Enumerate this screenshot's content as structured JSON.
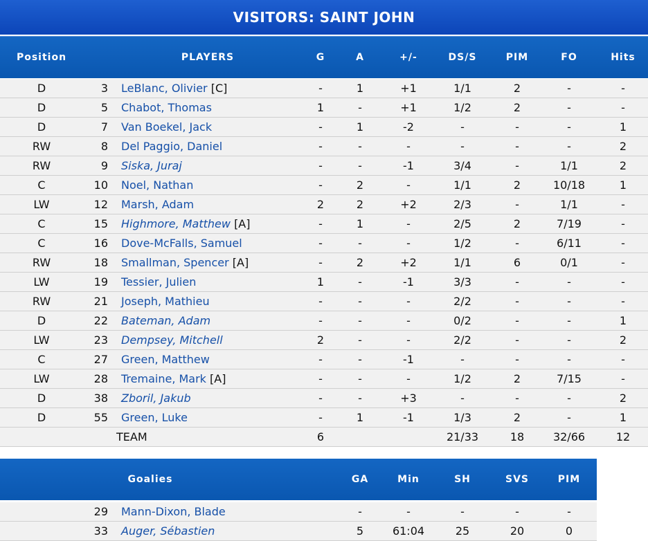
{
  "title": "VISITORS: SAINT JOHN",
  "headers": {
    "position": "Position",
    "players": "PLAYERS",
    "g": "G",
    "a": "A",
    "pm": "+/-",
    "dss": "DS/S",
    "pim": "PIM",
    "fo": "FO",
    "hits": "Hits"
  },
  "players": [
    {
      "pos": "D",
      "num": "3",
      "name": "LeBlanc, Olivier",
      "tag": "[C]",
      "italic": false,
      "g": "-",
      "a": "1",
      "pm": "+1",
      "dss": "1/1",
      "pim": "2",
      "fo": "-",
      "hits": "-"
    },
    {
      "pos": "D",
      "num": "5",
      "name": "Chabot, Thomas",
      "tag": "",
      "italic": false,
      "g": "1",
      "a": "-",
      "pm": "+1",
      "dss": "1/2",
      "pim": "2",
      "fo": "-",
      "hits": "-"
    },
    {
      "pos": "D",
      "num": "7",
      "name": "Van Boekel, Jack",
      "tag": "",
      "italic": false,
      "g": "-",
      "a": "1",
      "pm": "-2",
      "dss": "-",
      "pim": "-",
      "fo": "-",
      "hits": "1"
    },
    {
      "pos": "RW",
      "num": "8",
      "name": "Del Paggio, Daniel",
      "tag": "",
      "italic": false,
      "g": "-",
      "a": "-",
      "pm": "-",
      "dss": "-",
      "pim": "-",
      "fo": "-",
      "hits": "2"
    },
    {
      "pos": "RW",
      "num": "9",
      "name": "Siska, Juraj",
      "tag": "",
      "italic": true,
      "g": "-",
      "a": "-",
      "pm": "-1",
      "dss": "3/4",
      "pim": "-",
      "fo": "1/1",
      "hits": "2"
    },
    {
      "pos": "C",
      "num": "10",
      "name": "Noel, Nathan",
      "tag": "",
      "italic": false,
      "g": "-",
      "a": "2",
      "pm": "-",
      "dss": "1/1",
      "pim": "2",
      "fo": "10/18",
      "hits": "1"
    },
    {
      "pos": "LW",
      "num": "12",
      "name": "Marsh, Adam",
      "tag": "",
      "italic": false,
      "g": "2",
      "a": "2",
      "pm": "+2",
      "dss": "2/3",
      "pim": "-",
      "fo": "1/1",
      "hits": "-"
    },
    {
      "pos": "C",
      "num": "15",
      "name": "Highmore, Matthew",
      "tag": "[A]",
      "italic": true,
      "g": "-",
      "a": "1",
      "pm": "-",
      "dss": "2/5",
      "pim": "2",
      "fo": "7/19",
      "hits": "-"
    },
    {
      "pos": "C",
      "num": "16",
      "name": "Dove-McFalls, Samuel",
      "tag": "",
      "italic": false,
      "g": "-",
      "a": "-",
      "pm": "-",
      "dss": "1/2",
      "pim": "-",
      "fo": "6/11",
      "hits": "-"
    },
    {
      "pos": "RW",
      "num": "18",
      "name": "Smallman, Spencer",
      "tag": "[A]",
      "italic": false,
      "g": "-",
      "a": "2",
      "pm": "+2",
      "dss": "1/1",
      "pim": "6",
      "fo": "0/1",
      "hits": "-"
    },
    {
      "pos": "LW",
      "num": "19",
      "name": "Tessier, Julien",
      "tag": "",
      "italic": false,
      "g": "1",
      "a": "-",
      "pm": "-1",
      "dss": "3/3",
      "pim": "-",
      "fo": "-",
      "hits": "-"
    },
    {
      "pos": "RW",
      "num": "21",
      "name": "Joseph, Mathieu",
      "tag": "",
      "italic": false,
      "g": "-",
      "a": "-",
      "pm": "-",
      "dss": "2/2",
      "pim": "-",
      "fo": "-",
      "hits": "-"
    },
    {
      "pos": "D",
      "num": "22",
      "name": "Bateman, Adam",
      "tag": "",
      "italic": true,
      "g": "-",
      "a": "-",
      "pm": "-",
      "dss": "0/2",
      "pim": "-",
      "fo": "-",
      "hits": "1"
    },
    {
      "pos": "LW",
      "num": "23",
      "name": "Dempsey, Mitchell",
      "tag": "",
      "italic": true,
      "g": "2",
      "a": "-",
      "pm": "-",
      "dss": "2/2",
      "pim": "-",
      "fo": "-",
      "hits": "2"
    },
    {
      "pos": "C",
      "num": "27",
      "name": "Green, Matthew",
      "tag": "",
      "italic": false,
      "g": "-",
      "a": "-",
      "pm": "-1",
      "dss": "-",
      "pim": "-",
      "fo": "-",
      "hits": "-"
    },
    {
      "pos": "LW",
      "num": "28",
      "name": "Tremaine, Mark",
      "tag": "[A]",
      "italic": false,
      "g": "-",
      "a": "-",
      "pm": "-",
      "dss": "1/2",
      "pim": "2",
      "fo": "7/15",
      "hits": "-"
    },
    {
      "pos": "D",
      "num": "38",
      "name": "Zboril, Jakub",
      "tag": "",
      "italic": true,
      "g": "-",
      "a": "-",
      "pm": "+3",
      "dss": "-",
      "pim": "-",
      "fo": "-",
      "hits": "2"
    },
    {
      "pos": "D",
      "num": "55",
      "name": "Green, Luke",
      "tag": "",
      "italic": false,
      "g": "-",
      "a": "1",
      "pm": "-1",
      "dss": "1/3",
      "pim": "2",
      "fo": "-",
      "hits": "1"
    }
  ],
  "team": {
    "label": "TEAM",
    "g": "6",
    "dss": "21/33",
    "pim": "18",
    "fo": "32/66",
    "hits": "12"
  },
  "goalie_headers": {
    "goalies": "Goalies",
    "ga": "GA",
    "min": "Min",
    "sh": "SH",
    "svs": "SVS",
    "pim": "PIM"
  },
  "goalies": [
    {
      "num": "29",
      "name": "Mann-Dixon, Blade",
      "italic": false,
      "ga": "-",
      "min": "-",
      "sh": "-",
      "svs": "-",
      "pim": "-"
    },
    {
      "num": "33",
      "name": "Auger, Sébastien",
      "italic": true,
      "ga": "5",
      "min": "61:04",
      "sh": "25",
      "svs": "20",
      "pim": "0"
    }
  ]
}
